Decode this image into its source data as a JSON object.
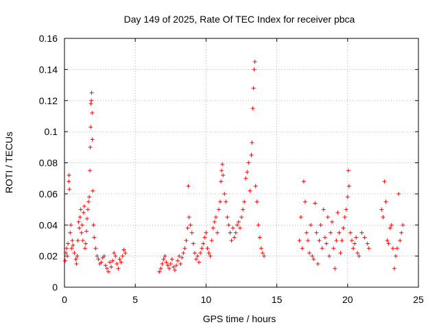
{
  "chart_data": {
    "type": "scatter",
    "title": "Day 149 of 2025, Rate Of TEC Index for receiver pbca",
    "xlabel": "GPS time / hours",
    "ylabel": "ROTI / TECUs",
    "xlim": [
      0,
      25
    ],
    "ylim": [
      0,
      0.16
    ],
    "xticks": [
      0,
      5,
      10,
      15,
      20,
      25
    ],
    "yticks": [
      0,
      0.02,
      0.04,
      0.06,
      0.08,
      0.1,
      0.12,
      0.14,
      0.16
    ],
    "xtick_labels": [
      "0",
      "5",
      "10",
      "15",
      "20",
      "25"
    ],
    "ytick_labels": [
      "0",
      "0.02",
      "0.04",
      "0.06",
      "0.08",
      "0.1",
      "0.12",
      "0.14",
      "0.16"
    ],
    "grid": true,
    "marker": "+",
    "marker_color": "#ff0000",
    "series": [
      {
        "points": [
          [
            0.05,
            0.017
          ],
          [
            0.1,
            0.022
          ],
          [
            0.15,
            0.025
          ],
          [
            0.2,
            0.02
          ],
          [
            0.25,
            0.028
          ],
          [
            0.3,
            0.068
          ],
          [
            0.32,
            0.072
          ],
          [
            0.35,
            0.063
          ],
          [
            0.4,
            0.035
          ],
          [
            0.45,
            0.04
          ],
          [
            0.5,
            0.025
          ],
          [
            0.55,
            0.03
          ],
          [
            0.6,
            0.027
          ],
          [
            0.7,
            0.022
          ],
          [
            0.8,
            0.018
          ],
          [
            0.85,
            0.015
          ],
          [
            0.9,
            0.02
          ],
          [
            0.95,
            0.03
          ],
          [
            1.0,
            0.042
          ],
          [
            1.05,
            0.038
          ],
          [
            1.1,
            0.045
          ],
          [
            1.15,
            0.05
          ],
          [
            1.2,
            0.035
          ],
          [
            1.25,
            0.04
          ],
          [
            1.3,
            0.03
          ],
          [
            1.35,
            0.048
          ],
          [
            1.4,
            0.052
          ],
          [
            1.45,
            0.025
          ],
          [
            1.5,
            0.028
          ],
          [
            1.55,
            0.036
          ],
          [
            1.6,
            0.044
          ],
          [
            1.65,
            0.05
          ],
          [
            1.7,
            0.055
          ],
          [
            1.75,
            0.058
          ],
          [
            1.8,
            0.075
          ],
          [
            1.82,
            0.09
          ],
          [
            1.85,
            0.103
          ],
          [
            1.87,
            0.118
          ],
          [
            1.9,
            0.12
          ],
          [
            1.92,
            0.125
          ],
          [
            1.95,
            0.112
          ],
          [
            1.97,
            0.095
          ],
          [
            2.0,
            0.062
          ],
          [
            2.05,
            0.04
          ],
          [
            2.1,
            0.032
          ],
          [
            2.2,
            0.025
          ],
          [
            2.3,
            0.02
          ],
          [
            2.4,
            0.018
          ],
          [
            2.5,
            0.015
          ],
          [
            2.6,
            0.016
          ],
          [
            2.7,
            0.019
          ],
          [
            2.8,
            0.02
          ],
          [
            2.9,
            0.014
          ],
          [
            3.0,
            0.012
          ],
          [
            3.1,
            0.01
          ],
          [
            3.2,
            0.016
          ],
          [
            3.3,
            0.013
          ],
          [
            3.4,
            0.017
          ],
          [
            3.5,
            0.022
          ],
          [
            3.6,
            0.02
          ],
          [
            3.7,
            0.015
          ],
          [
            3.8,
            0.012
          ],
          [
            3.9,
            0.018
          ],
          [
            4.0,
            0.016
          ],
          [
            4.1,
            0.02
          ],
          [
            4.2,
            0.024
          ],
          [
            4.3,
            0.022
          ],
          [
            6.7,
            0.01
          ],
          [
            6.8,
            0.012
          ],
          [
            6.9,
            0.015
          ],
          [
            7.0,
            0.018
          ],
          [
            7.1,
            0.02
          ],
          [
            7.2,
            0.016
          ],
          [
            7.3,
            0.014
          ],
          [
            7.4,
            0.012
          ],
          [
            7.5,
            0.015
          ],
          [
            7.6,
            0.018
          ],
          [
            7.7,
            0.013
          ],
          [
            7.8,
            0.011
          ],
          [
            7.9,
            0.014
          ],
          [
            8.0,
            0.017
          ],
          [
            8.1,
            0.02
          ],
          [
            8.2,
            0.015
          ],
          [
            8.3,
            0.019
          ],
          [
            8.4,
            0.022
          ],
          [
            8.5,
            0.025
          ],
          [
            8.6,
            0.03
          ],
          [
            8.7,
            0.038
          ],
          [
            8.75,
            0.065
          ],
          [
            8.8,
            0.045
          ],
          [
            8.9,
            0.04
          ],
          [
            9.0,
            0.035
          ],
          [
            9.1,
            0.028
          ],
          [
            9.2,
            0.022
          ],
          [
            9.3,
            0.018
          ],
          [
            9.4,
            0.02
          ],
          [
            9.5,
            0.016
          ],
          [
            9.6,
            0.022
          ],
          [
            9.7,
            0.025
          ],
          [
            9.8,
            0.028
          ],
          [
            9.9,
            0.032
          ],
          [
            10.0,
            0.035
          ],
          [
            10.1,
            0.025
          ],
          [
            10.2,
            0.022
          ],
          [
            10.3,
            0.02
          ],
          [
            10.4,
            0.03
          ],
          [
            10.5,
            0.038
          ],
          [
            10.6,
            0.042
          ],
          [
            10.7,
            0.045
          ],
          [
            10.8,
            0.035
          ],
          [
            10.9,
            0.05
          ],
          [
            11.0,
            0.055
          ],
          [
            11.05,
            0.068
          ],
          [
            11.1,
            0.075
          ],
          [
            11.15,
            0.079
          ],
          [
            11.2,
            0.072
          ],
          [
            11.3,
            0.06
          ],
          [
            11.4,
            0.055
          ],
          [
            11.5,
            0.045
          ],
          [
            11.6,
            0.04
          ],
          [
            11.7,
            0.035
          ],
          [
            11.8,
            0.03
          ],
          [
            11.9,
            0.038
          ],
          [
            12.0,
            0.032
          ],
          [
            12.1,
            0.035
          ],
          [
            12.2,
            0.04
          ],
          [
            12.3,
            0.042
          ],
          [
            12.4,
            0.038
          ],
          [
            12.5,
            0.045
          ],
          [
            12.6,
            0.05
          ],
          [
            12.7,
            0.055
          ],
          [
            12.8,
            0.07
          ],
          [
            12.9,
            0.074
          ],
          [
            13.0,
            0.08
          ],
          [
            13.1,
            0.062
          ],
          [
            13.2,
            0.085
          ],
          [
            13.25,
            0.093
          ],
          [
            13.3,
            0.115
          ],
          [
            13.35,
            0.128
          ],
          [
            13.4,
            0.14
          ],
          [
            13.45,
            0.145
          ],
          [
            13.5,
            0.065
          ],
          [
            13.6,
            0.055
          ],
          [
            13.7,
            0.04
          ],
          [
            13.8,
            0.032
          ],
          [
            13.9,
            0.025
          ],
          [
            14.0,
            0.022
          ],
          [
            14.1,
            0.02
          ],
          [
            16.6,
            0.03
          ],
          [
            16.7,
            0.045
          ],
          [
            16.8,
            0.025
          ],
          [
            16.9,
            0.068
          ],
          [
            17.0,
            0.055
          ],
          [
            17.1,
            0.035
          ],
          [
            17.2,
            0.03
          ],
          [
            17.3,
            0.022
          ],
          [
            17.4,
            0.04
          ],
          [
            17.5,
            0.02
          ],
          [
            17.6,
            0.018
          ],
          [
            17.7,
            0.054
          ],
          [
            17.8,
            0.035
          ],
          [
            17.9,
            0.015
          ],
          [
            18.0,
            0.03
          ],
          [
            18.1,
            0.04
          ],
          [
            18.2,
            0.025
          ],
          [
            18.3,
            0.05
          ],
          [
            18.4,
            0.032
          ],
          [
            18.5,
            0.028
          ],
          [
            18.6,
            0.045
          ],
          [
            18.7,
            0.02
          ],
          [
            18.8,
            0.035
          ],
          [
            18.9,
            0.042
          ],
          [
            19.0,
            0.025
          ],
          [
            19.1,
            0.012
          ],
          [
            19.2,
            0.03
          ],
          [
            19.3,
            0.048
          ],
          [
            19.4,
            0.035
          ],
          [
            19.5,
            0.022
          ],
          [
            19.6,
            0.03
          ],
          [
            19.7,
            0.038
          ],
          [
            19.8,
            0.045
          ],
          [
            19.9,
            0.05
          ],
          [
            20.0,
            0.058
          ],
          [
            20.05,
            0.075
          ],
          [
            20.1,
            0.065
          ],
          [
            20.2,
            0.035
          ],
          [
            20.3,
            0.03
          ],
          [
            20.4,
            0.025
          ],
          [
            20.5,
            0.028
          ],
          [
            20.6,
            0.032
          ],
          [
            20.7,
            0.022
          ],
          [
            20.8,
            0.02
          ],
          [
            21.0,
            0.035
          ],
          [
            21.2,
            0.032
          ],
          [
            21.4,
            0.028
          ],
          [
            21.5,
            0.025
          ],
          [
            22.4,
            0.05
          ],
          [
            22.5,
            0.045
          ],
          [
            22.6,
            0.068
          ],
          [
            22.7,
            0.055
          ],
          [
            22.8,
            0.03
          ],
          [
            22.9,
            0.028
          ],
          [
            23.0,
            0.038
          ],
          [
            23.1,
            0.04
          ],
          [
            23.2,
            0.025
          ],
          [
            23.3,
            0.012
          ],
          [
            23.4,
            0.02
          ],
          [
            23.5,
            0.025
          ],
          [
            23.6,
            0.06
          ],
          [
            23.7,
            0.03
          ],
          [
            23.8,
            0.035
          ],
          [
            23.9,
            0.04
          ]
        ]
      }
    ]
  }
}
